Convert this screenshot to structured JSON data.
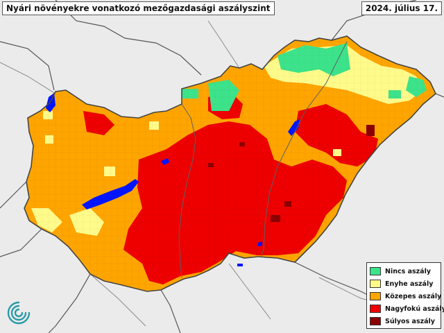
{
  "header": {
    "title": "Nyári növényekre vonatkozó mezőgazdasági aszályszint",
    "date": "2024. július 17."
  },
  "legend": {
    "items": [
      {
        "label": "Nincs aszály",
        "color": "#3de38a"
      },
      {
        "label": "Enyhe aszály",
        "color": "#fffb8a"
      },
      {
        "label": "Közepes aszály",
        "color": "#ffa500"
      },
      {
        "label": "Nagyfokú aszály",
        "color": "#ee0000"
      },
      {
        "label": "Súlyos aszály",
        "color": "#8b0000"
      }
    ]
  },
  "colors": {
    "background": "#ebebeb",
    "border": "#444444",
    "water": "#0015ff",
    "logo": "#2a9aa8"
  },
  "icons": {
    "logo": "swirl-logo-icon"
  }
}
